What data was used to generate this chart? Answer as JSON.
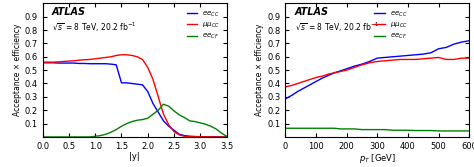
{
  "title": "ATLAS",
  "subtitle": "#sqrt{s} = 8 TeV, 20.2 fb^{-1}",
  "ylabel": "Acceptance #times efficiency",
  "xlabel_left": "|y|",
  "xlabel_right": "p_{T} [GeV]",
  "legend_labels": [
    "ee_{CC}",
    "#mu#mu_{CC}",
    "ee_{CF}"
  ],
  "legend_colors": [
    "blue",
    "red",
    "green"
  ],
  "plot1": {
    "xlim": [
      0,
      3.5
    ],
    "ylim": [
      0,
      1.0
    ],
    "yticks": [
      0.1,
      0.2,
      0.3,
      0.4,
      0.5,
      0.6,
      0.7,
      0.8,
      0.9
    ],
    "xticks": [
      0,
      0.5,
      1.0,
      1.5,
      2.0,
      2.5,
      3.0,
      3.5
    ],
    "ee_cc_x": [
      0.0,
      0.1,
      0.2,
      0.3,
      0.4,
      0.5,
      0.6,
      0.7,
      0.8,
      0.9,
      1.0,
      1.1,
      1.2,
      1.3,
      1.4,
      1.5,
      1.6,
      1.7,
      1.8,
      1.9,
      2.0,
      2.1,
      2.2,
      2.3,
      2.4,
      2.5,
      2.6,
      2.7,
      2.8,
      2.9,
      3.0,
      3.1,
      3.2,
      3.3,
      3.4,
      3.5
    ],
    "ee_cc_y": [
      0.555,
      0.555,
      0.555,
      0.553,
      0.553,
      0.553,
      0.553,
      0.55,
      0.55,
      0.548,
      0.548,
      0.548,
      0.548,
      0.545,
      0.54,
      0.405,
      0.405,
      0.4,
      0.395,
      0.39,
      0.34,
      0.25,
      0.185,
      0.12,
      0.08,
      0.05,
      0.02,
      0.01,
      0.005,
      0.003,
      0.002,
      0.001,
      0.001,
      0.001,
      0.0,
      0.0
    ],
    "mumu_cc_x": [
      0.0,
      0.1,
      0.2,
      0.3,
      0.4,
      0.5,
      0.6,
      0.7,
      0.8,
      0.9,
      1.0,
      1.1,
      1.2,
      1.3,
      1.4,
      1.5,
      1.6,
      1.7,
      1.8,
      1.9,
      2.0,
      2.1,
      2.2,
      2.3,
      2.4,
      2.5,
      2.6,
      2.7,
      2.8,
      2.9,
      3.0,
      3.1,
      3.2,
      3.3,
      3.4,
      3.5
    ],
    "mumu_cc_y": [
      0.56,
      0.56,
      0.56,
      0.562,
      0.565,
      0.568,
      0.57,
      0.575,
      0.578,
      0.58,
      0.585,
      0.59,
      0.595,
      0.6,
      0.61,
      0.615,
      0.615,
      0.61,
      0.6,
      0.58,
      0.52,
      0.43,
      0.3,
      0.17,
      0.09,
      0.04,
      0.015,
      0.005,
      0.003,
      0.002,
      0.001,
      0.001,
      0.001,
      0.0,
      0.0,
      0.0
    ],
    "ee_cf_x": [
      0.0,
      0.1,
      0.2,
      0.3,
      0.4,
      0.5,
      0.6,
      0.7,
      0.8,
      0.9,
      1.0,
      1.1,
      1.2,
      1.3,
      1.4,
      1.5,
      1.6,
      1.7,
      1.8,
      1.9,
      2.0,
      2.1,
      2.2,
      2.3,
      2.4,
      2.5,
      2.6,
      2.7,
      2.8,
      2.9,
      3.0,
      3.1,
      3.2,
      3.3,
      3.4,
      3.5
    ],
    "ee_cf_y": [
      0.0,
      0.0,
      0.0,
      0.0,
      0.0,
      0.0,
      0.0,
      0.0,
      0.0,
      0.0,
      0.005,
      0.01,
      0.02,
      0.035,
      0.055,
      0.08,
      0.1,
      0.115,
      0.125,
      0.13,
      0.14,
      0.17,
      0.2,
      0.245,
      0.23,
      0.195,
      0.165,
      0.145,
      0.12,
      0.115,
      0.105,
      0.095,
      0.08,
      0.06,
      0.03,
      0.005
    ]
  },
  "plot2": {
    "xlim": [
      0,
      600
    ],
    "ylim": [
      0,
      1.0
    ],
    "yticks": [
      0.1,
      0.2,
      0.3,
      0.4,
      0.5,
      0.6,
      0.7,
      0.8,
      0.9
    ],
    "xticks": [
      0,
      100,
      200,
      300,
      400,
      500,
      600
    ],
    "ee_cc_x": [
      0,
      20,
      40,
      60,
      80,
      100,
      120,
      140,
      160,
      180,
      200,
      225,
      250,
      275,
      300,
      325,
      350,
      375,
      400,
      425,
      450,
      475,
      500,
      525,
      550,
      575,
      600
    ],
    "ee_cc_y": [
      0.285,
      0.31,
      0.34,
      0.365,
      0.39,
      0.415,
      0.44,
      0.46,
      0.48,
      0.495,
      0.51,
      0.53,
      0.545,
      0.565,
      0.59,
      0.595,
      0.6,
      0.605,
      0.61,
      0.615,
      0.62,
      0.63,
      0.66,
      0.67,
      0.695,
      0.71,
      0.72
    ],
    "mumu_cc_x": [
      0,
      20,
      40,
      60,
      80,
      100,
      120,
      140,
      160,
      180,
      200,
      225,
      250,
      275,
      300,
      325,
      350,
      375,
      400,
      425,
      450,
      475,
      500,
      525,
      550,
      575,
      600
    ],
    "mumu_cc_y": [
      0.375,
      0.385,
      0.4,
      0.415,
      0.43,
      0.445,
      0.455,
      0.47,
      0.48,
      0.49,
      0.5,
      0.52,
      0.54,
      0.555,
      0.565,
      0.57,
      0.575,
      0.58,
      0.58,
      0.58,
      0.585,
      0.59,
      0.595,
      0.58,
      0.58,
      0.59,
      0.59
    ],
    "ee_cf_x": [
      0,
      20,
      40,
      60,
      80,
      100,
      120,
      140,
      160,
      180,
      200,
      225,
      250,
      275,
      300,
      325,
      350,
      375,
      400,
      425,
      450,
      475,
      500,
      525,
      550,
      575,
      600
    ],
    "ee_cf_y": [
      0.065,
      0.065,
      0.065,
      0.065,
      0.065,
      0.065,
      0.065,
      0.065,
      0.065,
      0.06,
      0.06,
      0.06,
      0.055,
      0.055,
      0.055,
      0.055,
      0.05,
      0.05,
      0.05,
      0.048,
      0.048,
      0.048,
      0.045,
      0.045,
      0.045,
      0.045,
      0.045
    ]
  }
}
